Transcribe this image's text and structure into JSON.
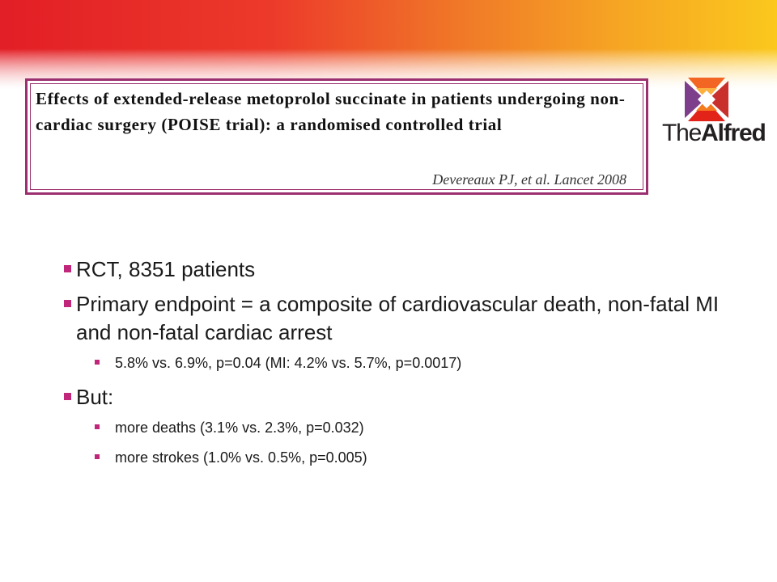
{
  "header": {
    "title": "Effects of extended-release metoprolol succinate in patients undergoing non-cardiac surgery (POISE trial): a randomised controlled trial",
    "citation": "Devereaux PJ, et al.  Lancet 2008"
  },
  "logo": {
    "text_part1": "The",
    "text_part2": "Alfred",
    "colors": {
      "orange": "#f26522",
      "red": "#e2231a",
      "purple": "#7d3f8c",
      "yellow": "#fbb040"
    }
  },
  "bullets": [
    {
      "text": "RCT, 8351 patients",
      "sub": []
    },
    {
      "text": "Primary endpoint = a composite of cardiovascular death, non-fatal MI and non-fatal cardiac arrest",
      "sub": [
        "5.8% vs. 6.9%, p=0.04 (MI: 4.2% vs. 5.7%, p=0.0017)"
      ]
    },
    {
      "text": "But:",
      "sub": [
        "more deaths (3.1% vs. 2.3%, p=0.032)",
        "more strokes (1.0% vs. 0.5%, p=0.005)"
      ]
    }
  ],
  "colors": {
    "border": "#9b2f6f",
    "bullet": "#c0267a",
    "banner_start": "#e21e26",
    "banner_end": "#fbc81d"
  }
}
